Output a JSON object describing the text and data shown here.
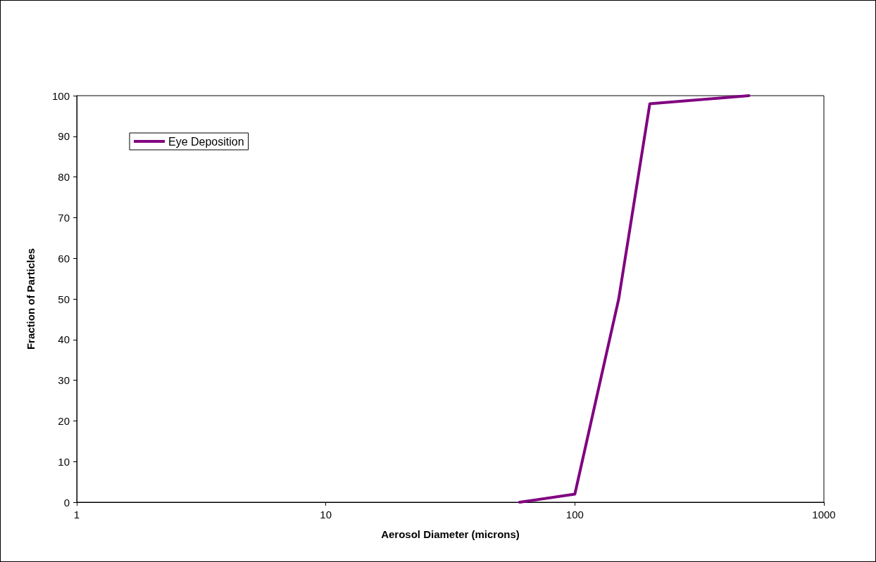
{
  "chart_data": {
    "type": "line",
    "xlabel": "Aerosol Diameter (microns)",
    "ylabel": "Fraction of Particles",
    "x": [
      60,
      100,
      150,
      200,
      500
    ],
    "series": [
      {
        "name": "Eye Deposition",
        "color": "#800080",
        "values": [
          0,
          2,
          50,
          98,
          100
        ]
      }
    ],
    "log": "x",
    "xlim": [
      1,
      1000
    ],
    "xticks": [
      1,
      10,
      100,
      1000
    ],
    "ylim": [
      0,
      100
    ],
    "yticks": [
      0,
      10,
      20,
      30,
      40,
      50,
      60,
      70,
      80,
      90,
      100
    ],
    "grid": false,
    "legend": "top left",
    "marker": "none",
    "line_style": "solid"
  }
}
